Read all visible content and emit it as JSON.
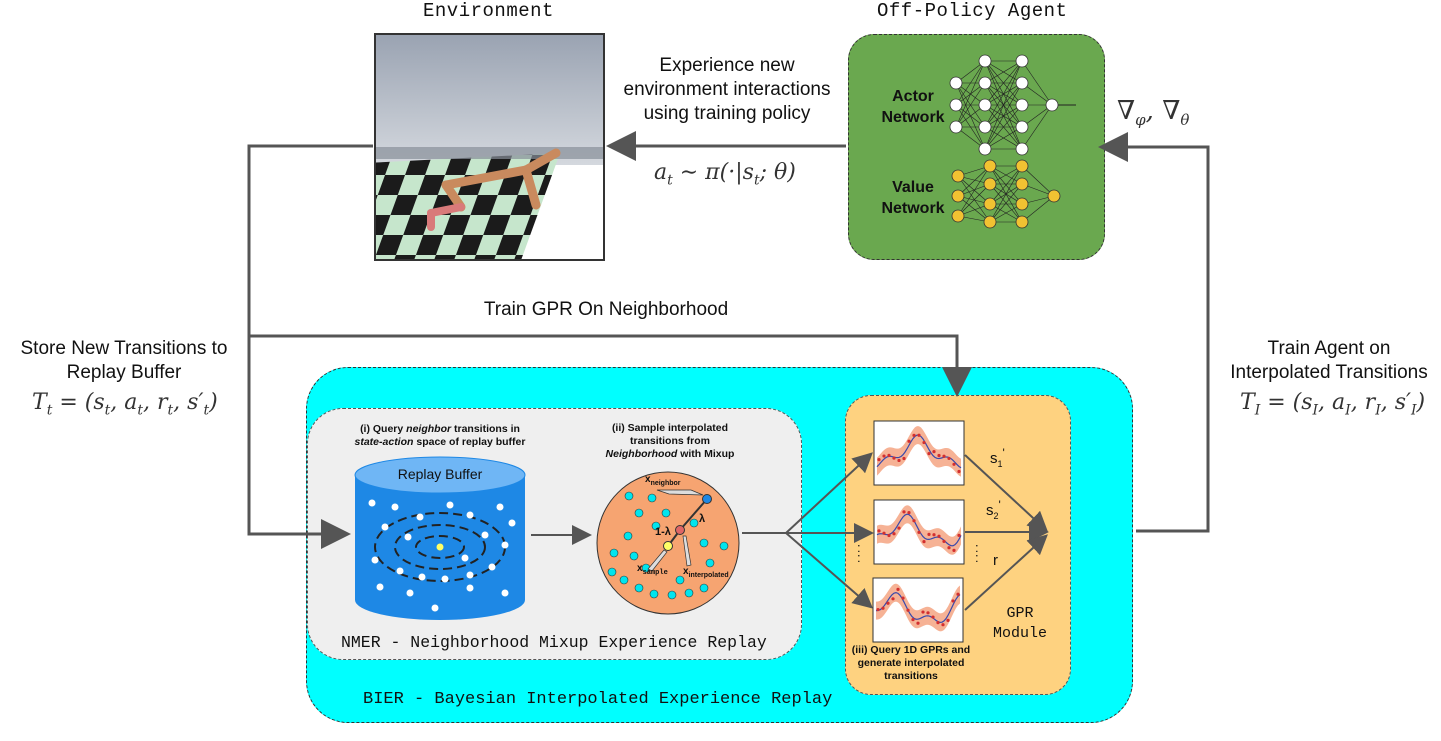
{
  "titles": {
    "environment": "Environment",
    "agent": "Off-Policy Agent"
  },
  "labels": {
    "experience": "Experience new environment interactions using training policy",
    "action": "a_t ~ π(·|s_t; θ)",
    "gradients": "∇_φ, ∇_θ",
    "train_gpr": "Train GPR On Neighborhood",
    "store": "Store New Transitions to Replay Buffer",
    "store_math": "T_t = (s_t, a_t, r_t, s'_t)",
    "train_agent": "Train Agent on Interpolated Transitions",
    "train_agent_math": "T_I = (s_I, a_I, r_I, s'_I)"
  },
  "agent": {
    "actor": "Actor Network",
    "value": "Value Network"
  },
  "nmer": {
    "step1_a": "(i) Query ",
    "step1_b": "neighbor",
    "step1_c": " transitions in ",
    "step1_d": "state-action",
    "step1_e": " space of replay buffer",
    "step2_a": "(ii) Sample interpolated transitions from ",
    "step2_b": "Neighborhood",
    "step2_c": " with Mixup",
    "buffer": "Replay Buffer",
    "x_neighbor": "x",
    "x_neighbor_sub": "neighbor",
    "x_sample": "x",
    "x_sample_sub": "sample",
    "x_interp": "x",
    "x_interp_sub": "interpolated",
    "one_minus_lambda": "1-λ",
    "lambda": "λ",
    "caption": "NMER - Neighborhood Mixup Experience Replay"
  },
  "gpr": {
    "s1": "s",
    "s1_sub": "1",
    "s1_prime": "'",
    "s2": "s",
    "s2_sub": "2",
    "s2_prime": "'",
    "r": "r",
    "dots": ":",
    "module": "GPR Module",
    "step3": "(iii) Query 1D GPRs and generate interpolated transitions"
  },
  "bier_caption": "BIER - Bayesian Interpolated Experience Replay",
  "colors": {
    "bier_bg": "#00ffff",
    "nmer_bg": "#efefef",
    "gpr_bg": "#fed280",
    "agent_bg": "#6aa84f",
    "buffer": "#1e88e5",
    "buffer_top": "#6fb6f5",
    "mixup_circle": "#f6a471",
    "arrow": "#555555"
  }
}
